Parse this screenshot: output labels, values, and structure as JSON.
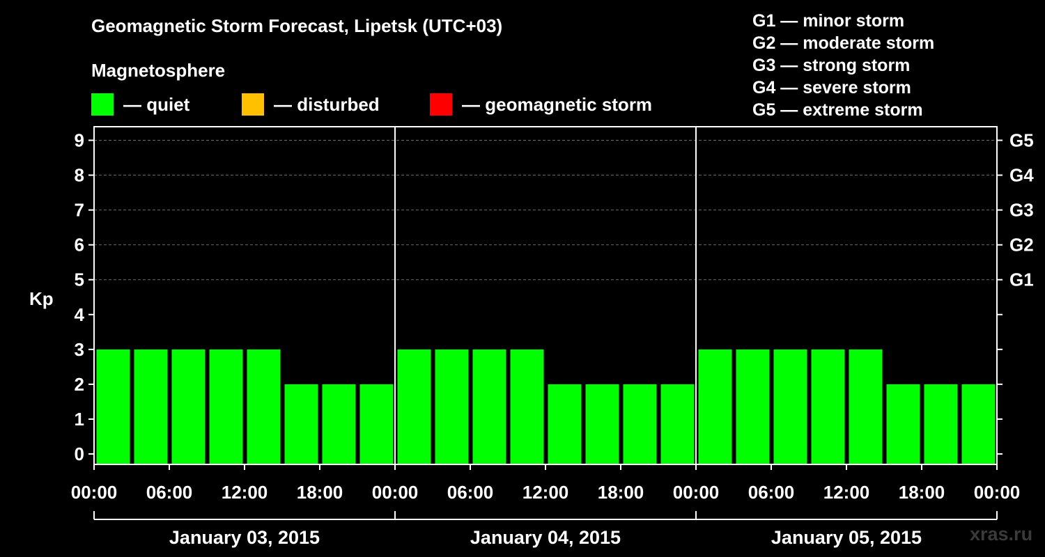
{
  "title": "Geomagnetic Storm Forecast, Lipetsk (UTC+03)",
  "legend": {
    "heading": "Magnetosphere",
    "items": [
      {
        "color": "#00ff00",
        "label": "— quiet"
      },
      {
        "color": "#ffc000",
        "label": "— disturbed"
      },
      {
        "color": "#ff0000",
        "label": "— geomagnetic storm"
      }
    ]
  },
  "g_scale": [
    "G1 — minor storm",
    "G2 — moderate storm",
    "G3 — strong storm",
    "G4 — severe storm",
    "G5 — extreme storm"
  ],
  "watermark": "xras.ru",
  "chart_data": {
    "type": "bar",
    "title": "Geomagnetic Storm Forecast, Lipetsk (UTC+03)",
    "ylabel": "Kp",
    "xlabel": "",
    "ylim": [
      0,
      9
    ],
    "yticks": [
      0,
      1,
      2,
      3,
      4,
      5,
      6,
      7,
      8,
      9
    ],
    "right_axis_labels": [
      {
        "kp": 5,
        "label": "G1"
      },
      {
        "kp": 6,
        "label": "G2"
      },
      {
        "kp": 7,
        "label": "G3"
      },
      {
        "kp": 8,
        "label": "G4"
      },
      {
        "kp": 9,
        "label": "G5"
      }
    ],
    "xtick_labels": [
      "00:00",
      "06:00",
      "12:00",
      "18:00",
      "00:00",
      "06:00",
      "12:00",
      "18:00",
      "00:00",
      "06:00",
      "12:00",
      "18:00",
      "00:00"
    ],
    "days": [
      {
        "date": "January 03, 2015",
        "values": [
          3,
          3,
          3,
          3,
          3,
          2,
          2,
          2
        ]
      },
      {
        "date": "January 04, 2015",
        "values": [
          3,
          3,
          3,
          3,
          2,
          2,
          2,
          2
        ]
      },
      {
        "date": "January 05, 2015",
        "values": [
          3,
          3,
          3,
          3,
          3,
          2,
          2,
          2
        ]
      }
    ],
    "bar_color": "#00ff00",
    "grid": "dashed horizontal at Kp 5-9"
  }
}
